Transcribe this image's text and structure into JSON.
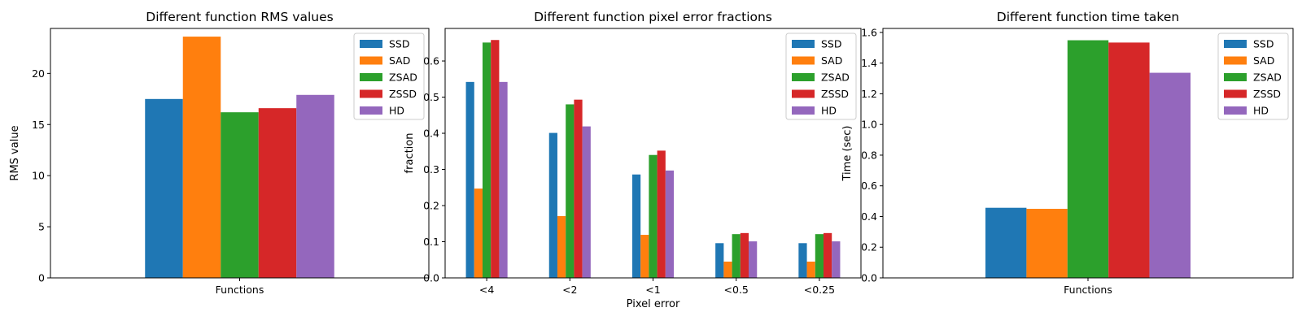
{
  "colors": {
    "SSD": "#1f77b4",
    "SAD": "#ff7f0e",
    "ZSAD": "#2ca02c",
    "ZSSD": "#d62728",
    "HD": "#9467bd"
  },
  "chart_data": [
    {
      "type": "bar",
      "title": "Different function RMS values",
      "xlabel": "",
      "ylabel": "RMS value",
      "categories": [
        "Functions"
      ],
      "series": [
        {
          "name": "SSD",
          "values": [
            17.5
          ]
        },
        {
          "name": "SAD",
          "values": [
            23.6
          ]
        },
        {
          "name": "ZSAD",
          "values": [
            16.2
          ]
        },
        {
          "name": "ZSSD",
          "values": [
            16.6
          ]
        },
        {
          "name": "HD",
          "values": [
            17.9
          ]
        }
      ],
      "ylim": [
        0,
        24.4
      ],
      "yticks": [
        0,
        5,
        10,
        15,
        20
      ],
      "legend": "top-right",
      "grid": false
    },
    {
      "type": "bar",
      "title": "Different function pixel error fractions",
      "xlabel": "Pixel error",
      "ylabel": "fraction",
      "categories": [
        "<4",
        "<2",
        "<1",
        "<0.5",
        "<0.25"
      ],
      "series": [
        {
          "name": "SSD",
          "values": [
            0.542,
            0.401,
            0.286,
            0.096,
            0.096
          ]
        },
        {
          "name": "SAD",
          "values": [
            0.247,
            0.171,
            0.119,
            0.045,
            0.045
          ]
        },
        {
          "name": "ZSAD",
          "values": [
            0.651,
            0.48,
            0.34,
            0.121,
            0.121
          ]
        },
        {
          "name": "ZSSD",
          "values": [
            0.658,
            0.493,
            0.352,
            0.124,
            0.124
          ]
        },
        {
          "name": "HD",
          "values": [
            0.542,
            0.419,
            0.297,
            0.101,
            0.101
          ]
        }
      ],
      "ylim": [
        0,
        0.69
      ],
      "yticks": [
        "0.0",
        "0.1",
        "0.2",
        "0.3",
        "0.4",
        "0.5",
        "0.6"
      ],
      "legend": "top-right",
      "grid": false
    },
    {
      "type": "bar",
      "title": "Different function time taken",
      "xlabel": "",
      "ylabel": "Time (sec)",
      "categories": [
        "Functions"
      ],
      "series": [
        {
          "name": "SSD",
          "values": [
            0.457
          ]
        },
        {
          "name": "SAD",
          "values": [
            0.45
          ]
        },
        {
          "name": "ZSAD",
          "values": [
            1.549
          ]
        },
        {
          "name": "ZSSD",
          "values": [
            1.534
          ]
        },
        {
          "name": "HD",
          "values": [
            1.337
          ]
        }
      ],
      "ylim": [
        0,
        1.626
      ],
      "yticks": [
        "0.0",
        "0.2",
        "0.4",
        "0.6",
        "0.8",
        "1.0",
        "1.2",
        "1.4",
        "1.6"
      ],
      "legend": "top-right",
      "grid": false
    }
  ]
}
